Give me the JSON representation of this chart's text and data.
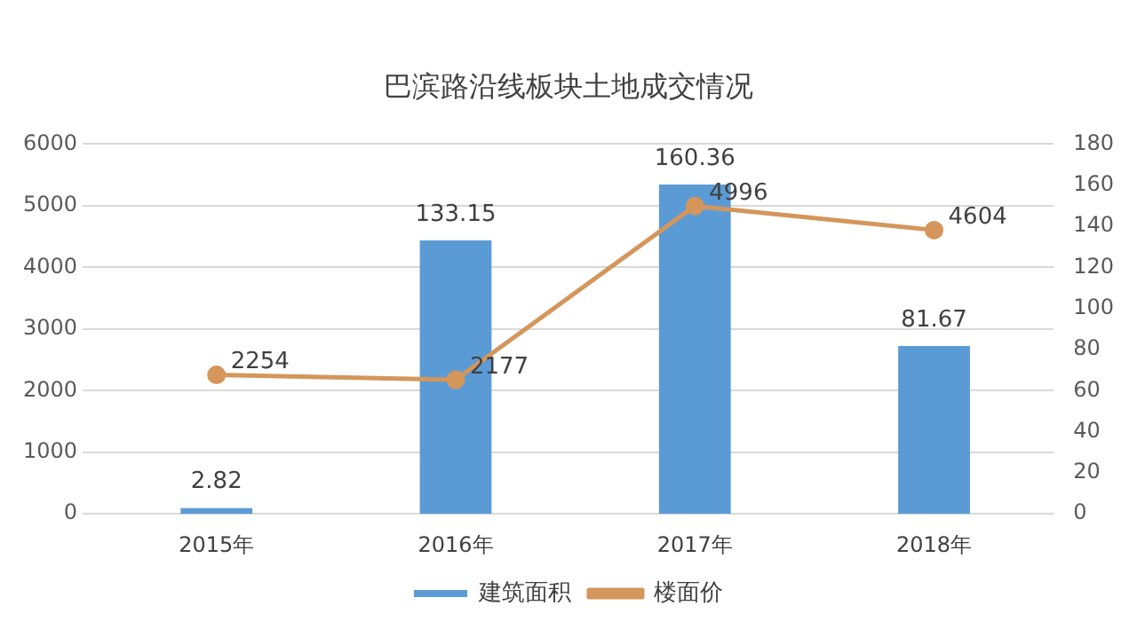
{
  "chart_data": {
    "type": "bar",
    "title": "巴滨路沿线板块土地成交情况",
    "categories": [
      "2015年",
      "2016年",
      "2017年",
      "2018年"
    ],
    "series": [
      {
        "name": "建筑面积",
        "axis": "y2",
        "color": "#5b9bd5",
        "values": [
          2.82,
          133.15,
          160.36,
          81.67
        ]
      },
      {
        "name": "楼面价",
        "type": "line",
        "axis": "y",
        "color": "#d4965a",
        "marker": "circle",
        "values": [
          2254,
          2177,
          4996,
          4604
        ]
      }
    ],
    "ylim": [
      0,
      6000
    ],
    "yticks": [
      0,
      1000,
      2000,
      3000,
      4000,
      5000,
      6000
    ],
    "y2lim": [
      0,
      180
    ],
    "y2ticks": [
      0,
      20,
      40,
      60,
      80,
      100,
      120,
      140,
      160,
      180
    ],
    "grid": "y",
    "legend": "bottom",
    "data_labels": true
  }
}
